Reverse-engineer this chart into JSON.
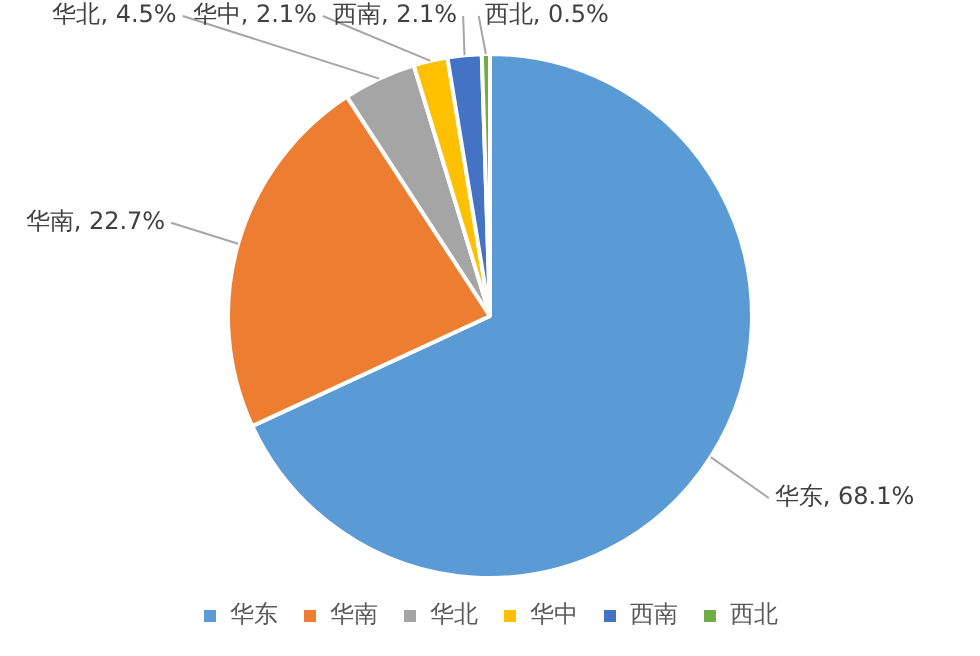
{
  "chart_data": {
    "type": "pie",
    "categories": [
      "华东",
      "华南",
      "华北",
      "华中",
      "西南",
      "西北"
    ],
    "values": [
      68.1,
      22.7,
      4.5,
      2.1,
      2.1,
      0.5
    ],
    "value_labels": [
      "华东, 68.1%",
      "华南, 22.7%",
      "华北, 4.5%",
      "华中, 2.1%",
      "西南, 2.1%",
      "西北, 0.5%"
    ],
    "colors": [
      "#5b9bd5",
      "#ed7d31",
      "#a5a5a5",
      "#ffc000",
      "#4472c4",
      "#70ad47"
    ],
    "legend": "bottom"
  }
}
